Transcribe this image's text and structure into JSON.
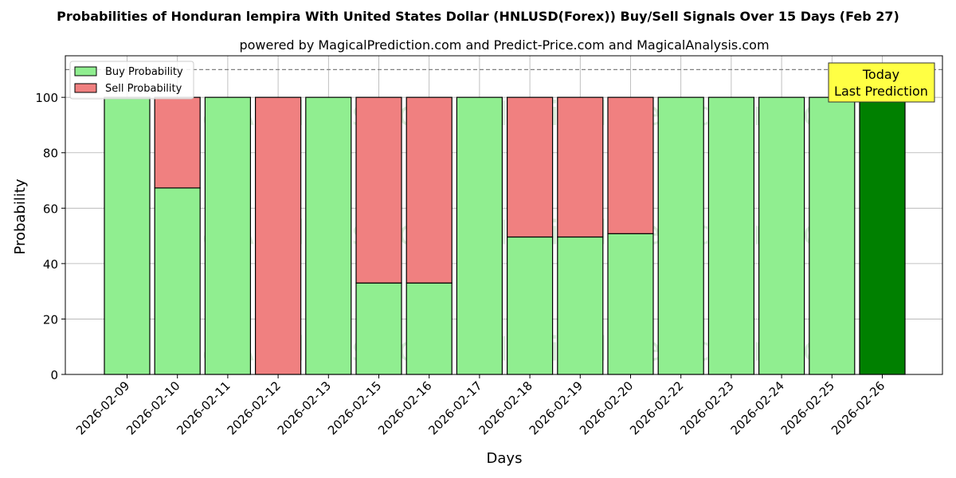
{
  "chart_data": {
    "type": "bar",
    "stacked": true,
    "title": "Probabilities of Honduran lempira With United States Dollar (HNLUSD(Forex)) Buy/Sell Signals Over 15 Days (Feb 27)",
    "subtitle": "powered by MagicalPrediction.com and Predict-Price.com and MagicalAnalysis.com",
    "xlabel": "Days",
    "ylabel": "Probability",
    "ylim": [
      0,
      115
    ],
    "yticks": [
      0,
      20,
      40,
      60,
      80,
      100
    ],
    "reference_line": 110,
    "grid": true,
    "legend_position": "top-left",
    "categories": [
      "2026-02-09",
      "2026-02-10",
      "2026-02-11",
      "2026-02-12",
      "2026-02-13",
      "2026-02-15",
      "2026-02-16",
      "2026-02-17",
      "2026-02-18",
      "2026-02-19",
      "2026-02-20",
      "2026-02-22",
      "2026-02-23",
      "2026-02-24",
      "2026-02-25",
      "2026-02-26"
    ],
    "series": [
      {
        "name": "Buy Probability",
        "color": "#90ee90",
        "values": [
          100,
          67.3,
          100,
          0,
          100,
          33,
          33,
          100,
          49.6,
          49.6,
          50.8,
          100,
          100,
          100,
          100,
          100
        ]
      },
      {
        "name": "Sell Probability",
        "color": "#f08080",
        "values": [
          0,
          32.7,
          0,
          100,
          0,
          67,
          67,
          0,
          50.4,
          50.4,
          49.2,
          0,
          0,
          0,
          0,
          0
        ]
      }
    ],
    "highlight": {
      "index": 15,
      "color": "#008000"
    },
    "annotation": {
      "lines": [
        "Today",
        "Last Prediction"
      ],
      "box_color": "#ffff44",
      "position": "top-right"
    },
    "watermarks": [
      "MagicalAnalysis.com",
      "MagicalPrediction.com"
    ]
  }
}
